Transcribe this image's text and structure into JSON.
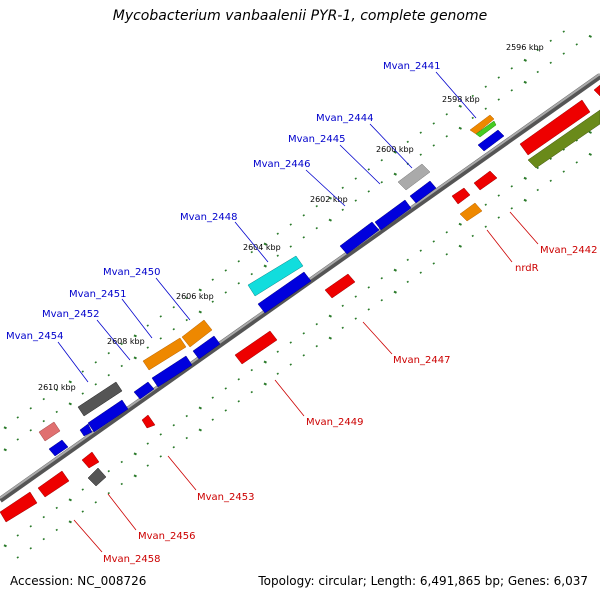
{
  "title": "Mycobacterium vanbaalenii PYR-1, complete genome",
  "footer": {
    "accession": "Accession: NC_008726",
    "summary": "Topology: circular; Length: 6,491,865 bp; Genes: 6,037"
  },
  "colors": {
    "backbone": "#8a8a8a",
    "tick": "#2a7a2a",
    "label_top": "#0000cc",
    "label_bottom": "#cc0000",
    "gene_blue": "#0000dd",
    "gene_red": "#ee0000",
    "gene_orange": "#ee8800",
    "gene_cyan": "#11dddd",
    "gene_gray": "#555555",
    "gene_lightgray": "#aaaaaa",
    "gene_green": "#44cc22",
    "gene_olive": "#6a8a1a",
    "gene_pink": "#e07070"
  },
  "ticks": {
    "unit": "kbp",
    "labels": [
      "2596 kbp",
      "2598 kbp",
      "2600 kbp",
      "2602 kbp",
      "2604 kbp",
      "2606 kbp",
      "2608 kbp",
      "2610 kbp"
    ]
  },
  "top_labels": [
    "Mvan_2441",
    "Mvan_2444",
    "Mvan_2445",
    "Mvan_2446",
    "Mvan_2448",
    "Mvan_2450",
    "Mvan_2451",
    "Mvan_2452",
    "Mvan_2454"
  ],
  "bottom_labels": [
    "Mvan_2442",
    "nrdR",
    "Mvan_2447",
    "Mvan_2449",
    "Mvan_2453",
    "Mvan_2456",
    "Mvan_2458"
  ]
}
